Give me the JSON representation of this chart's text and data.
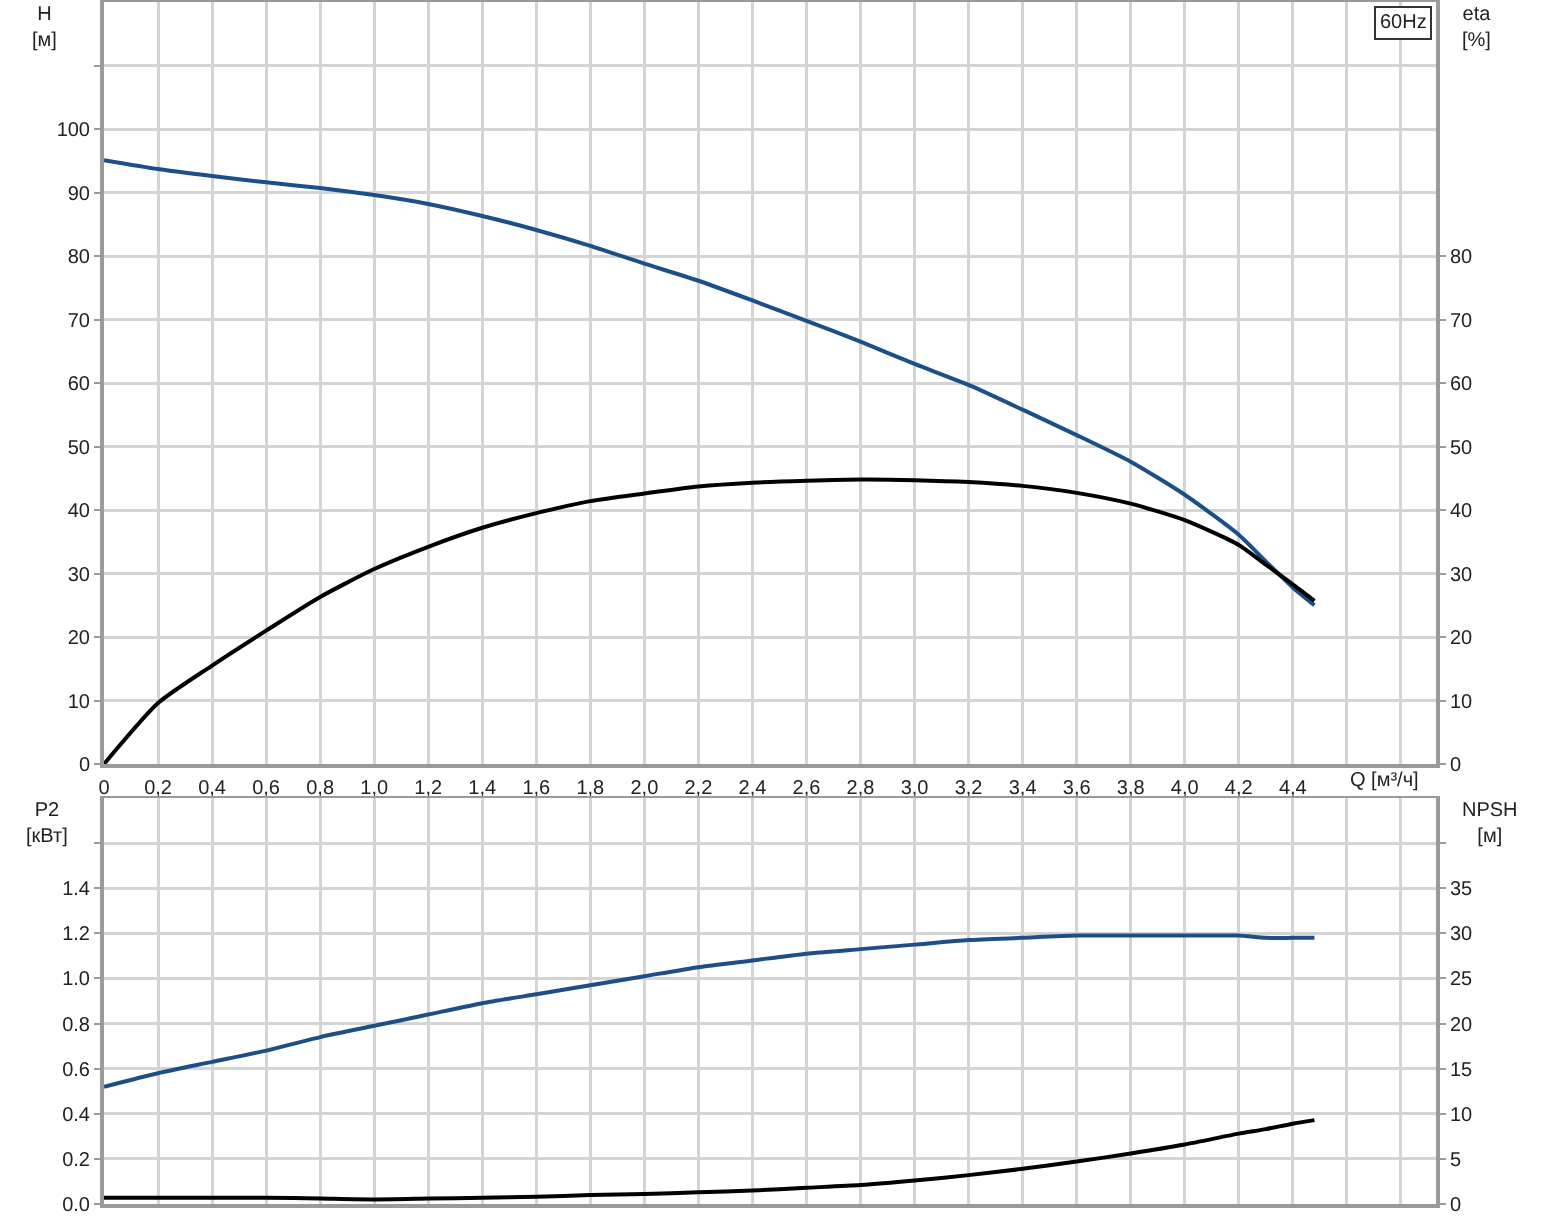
{
  "chart_data": [
    {
      "type": "line",
      "ylabel": "H\n[м]",
      "y2label": "eta\n[%]",
      "xlabel": "Q [м³/ч]",
      "annotations": [
        "60Hz"
      ],
      "x": [
        0,
        0.2,
        0.4,
        0.6,
        0.8,
        1.0,
        1.2,
        1.4,
        1.6,
        1.8,
        2.0,
        2.2,
        2.4,
        2.6,
        2.8,
        3.0,
        3.2,
        3.4,
        3.6,
        3.8,
        4.0,
        4.2,
        4.3,
        4.4,
        4.48
      ],
      "series": [
        {
          "color": "#1b4f8a",
          "values": [
            95.1,
            93.7,
            92.6,
            91.6,
            90.7,
            89.6,
            88.2,
            86.3,
            84.1,
            81.6,
            78.8,
            76.1,
            73.0,
            69.8,
            66.5,
            63.0,
            59.7,
            55.8,
            51.8,
            47.6,
            42.4,
            36.1,
            31.9,
            27.8,
            25.0
          ]
        },
        {
          "color": "#000000",
          "axis": "y2",
          "values": [
            0,
            9.6,
            15.5,
            21.0,
            26.3,
            30.7,
            34.2,
            37.2,
            39.5,
            41.4,
            42.6,
            43.7,
            44.3,
            44.6,
            44.8,
            44.7,
            44.4,
            43.8,
            42.7,
            41.0,
            38.4,
            34.5,
            31.4,
            28.3,
            25.7
          ]
        }
      ],
      "xlim": [
        0,
        4.93
      ],
      "xticks": [
        0,
        {
          "value": 0.2,
          "label": "0,2"
        },
        {
          "value": 0.4,
          "label": "0,4"
        },
        {
          "value": 0.6,
          "label": "0,6"
        },
        {
          "value": 0.8,
          "label": "0,8"
        },
        {
          "value": 1.0,
          "label": "1,0"
        },
        {
          "value": 1.2,
          "label": "1,2"
        },
        {
          "value": 1.4,
          "label": "1,4"
        },
        {
          "value": 1.6,
          "label": "1,6"
        },
        {
          "value": 1.8,
          "label": "1,8"
        },
        {
          "value": 2.0,
          "label": "2,0"
        },
        {
          "value": 2.2,
          "label": "2,2"
        },
        {
          "value": 2.4,
          "label": "2,4"
        },
        {
          "value": 2.6,
          "label": "2,6"
        },
        {
          "value": 2.8,
          "label": "2,8"
        },
        {
          "value": 3.0,
          "label": "3,0"
        },
        {
          "value": 3.2,
          "label": "3,2"
        },
        {
          "value": 3.4,
          "label": "3,4"
        },
        {
          "value": 3.6,
          "label": "3,6"
        },
        {
          "value": 3.8,
          "label": "3,8"
        },
        {
          "value": 4.0,
          "label": "4,0"
        },
        {
          "value": 4.2,
          "label": "4,2"
        },
        {
          "value": 4.4,
          "label": "4,4"
        },
        {
          "value": 4.6,
          "label": null
        },
        {
          "value": 4.8,
          "label": null
        }
      ],
      "ylim": [
        0,
        120
      ],
      "yticks": [
        0,
        10,
        20,
        30,
        40,
        50,
        60,
        70,
        80,
        90,
        100,
        {
          "value": 110,
          "label": null
        }
      ],
      "y2lim": [
        0,
        120
      ],
      "y2ticks": [
        0,
        10,
        20,
        30,
        40,
        50,
        60,
        70,
        80
      ],
      "grid": true
    },
    {
      "type": "line",
      "ylabel": "P2\n[кВт]",
      "y2label": "NPSH\n[м]",
      "x": [
        0,
        0.2,
        0.4,
        0.6,
        0.8,
        1.0,
        1.2,
        1.4,
        1.6,
        1.8,
        2.0,
        2.2,
        2.4,
        2.6,
        2.8,
        3.0,
        3.2,
        3.4,
        3.6,
        3.8,
        4.0,
        4.2,
        4.3,
        4.4,
        4.48
      ],
      "series": [
        {
          "color": "#1f4e86",
          "values": [
            0.52,
            0.58,
            0.63,
            0.68,
            0.74,
            0.79,
            0.84,
            0.89,
            0.93,
            0.97,
            1.01,
            1.05,
            1.08,
            1.11,
            1.13,
            1.15,
            1.17,
            1.18,
            1.19,
            1.19,
            1.19,
            1.19,
            1.18,
            1.18,
            1.18
          ]
        },
        {
          "color": "#000000",
          "axis": "y2",
          "values": [
            0.7,
            0.7,
            0.7,
            0.7,
            0.6,
            0.5,
            0.6,
            0.7,
            0.8,
            1.0,
            1.1,
            1.3,
            1.5,
            1.8,
            2.1,
            2.6,
            3.2,
            3.9,
            4.7,
            5.6,
            6.6,
            7.8,
            8.3,
            8.9,
            9.3
          ]
        }
      ],
      "xlim": [
        0,
        4.93
      ],
      "xticks": [
        0,
        0.2,
        0.4,
        0.6,
        0.8,
        1.0,
        1.2,
        1.4,
        1.6,
        1.8,
        2.0,
        2.2,
        2.4,
        2.6,
        2.8,
        3.0,
        3.2,
        3.4,
        3.6,
        3.8,
        4.0,
        4.2,
        4.4,
        4.6,
        4.8
      ],
      "ylim": [
        0,
        1.8
      ],
      "yticks": [
        {
          "value": 0,
          "label": "0.0"
        },
        0.2,
        0.4,
        0.6,
        0.8,
        {
          "value": 1.0,
          "label": "1.0"
        },
        1.2,
        1.4,
        {
          "value": 1.6,
          "label": null
        }
      ],
      "y2lim": [
        0,
        45
      ],
      "y2ticks": [
        0,
        5,
        10,
        15,
        20,
        25,
        30,
        35,
        {
          "value": 40,
          "label": null
        }
      ],
      "tick_labels": "y",
      "grid": true
    }
  ]
}
